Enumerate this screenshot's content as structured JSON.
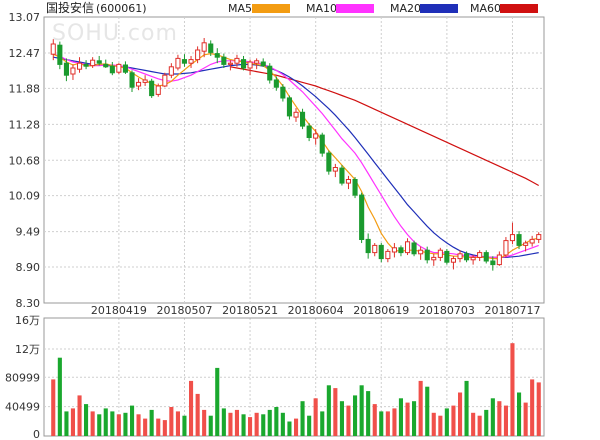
{
  "title": {
    "name": "国投安信",
    "code": "(600061)"
  },
  "watermark": "SOHU.com",
  "legend": [
    {
      "label": "MA5",
      "color": "#f39c12"
    },
    {
      "label": "MA10",
      "color": "#ff33ff"
    },
    {
      "label": "MA20",
      "color": "#1f2fb8"
    },
    {
      "label": "MA60",
      "color": "#d01010"
    }
  ],
  "chart_data": [
    {
      "type": "candlestick",
      "title": "国投安信(600061)",
      "ylim": [
        8.3,
        13.07
      ],
      "y_ticks": [
        "13.07",
        "12.47",
        "11.88",
        "11.28",
        "10.68",
        "10.09",
        "9.49",
        "8.90",
        "8.30"
      ],
      "x_ticks": [
        "20180419",
        "20180507",
        "20180521",
        "20180604",
        "20180619",
        "20180703",
        "20180717"
      ],
      "x_tick_index": [
        10,
        20,
        30,
        40,
        50,
        60,
        70
      ],
      "candles": [
        [
          12.45,
          12.7,
          12.35,
          12.62
        ],
        [
          12.6,
          12.66,
          12.2,
          12.28
        ],
        [
          12.3,
          12.38,
          12.0,
          12.1
        ],
        [
          12.12,
          12.28,
          12.02,
          12.22
        ],
        [
          12.2,
          12.4,
          12.14,
          12.3
        ],
        [
          12.28,
          12.35,
          12.2,
          12.25
        ],
        [
          12.26,
          12.4,
          12.22,
          12.35
        ],
        [
          12.34,
          12.42,
          12.26,
          12.3
        ],
        [
          12.28,
          12.36,
          12.22,
          12.24
        ],
        [
          12.25,
          12.32,
          12.1,
          12.14
        ],
        [
          12.15,
          12.3,
          12.12,
          12.28
        ],
        [
          12.27,
          12.33,
          12.12,
          12.15
        ],
        [
          12.14,
          12.18,
          11.82,
          11.9
        ],
        [
          11.92,
          12.05,
          11.85,
          11.98
        ],
        [
          11.98,
          12.1,
          11.92,
          12.02
        ],
        [
          12.0,
          12.04,
          11.72,
          11.76
        ],
        [
          11.78,
          11.96,
          11.74,
          11.92
        ],
        [
          11.92,
          12.14,
          11.9,
          12.1
        ],
        [
          12.1,
          12.3,
          12.05,
          12.24
        ],
        [
          12.22,
          12.44,
          12.18,
          12.38
        ],
        [
          12.36,
          12.45,
          12.24,
          12.3
        ],
        [
          12.3,
          12.42,
          12.22,
          12.36
        ],
        [
          12.36,
          12.58,
          12.3,
          12.52
        ],
        [
          12.5,
          12.72,
          12.4,
          12.64
        ],
        [
          12.62,
          12.68,
          12.42,
          12.48
        ],
        [
          12.46,
          12.55,
          12.3,
          12.4
        ],
        [
          12.4,
          12.46,
          12.22,
          12.28
        ],
        [
          12.28,
          12.35,
          12.18,
          12.3
        ],
        [
          12.3,
          12.44,
          12.24,
          12.38
        ],
        [
          12.36,
          12.42,
          12.18,
          12.22
        ],
        [
          12.22,
          12.36,
          12.1,
          12.32
        ],
        [
          12.3,
          12.38,
          12.2,
          12.34
        ],
        [
          12.32,
          12.38,
          12.24,
          12.26
        ],
        [
          12.25,
          12.3,
          11.96,
          12.02
        ],
        [
          12.02,
          12.08,
          11.84,
          11.9
        ],
        [
          11.9,
          11.95,
          11.66,
          11.72
        ],
        [
          11.72,
          11.76,
          11.36,
          11.42
        ],
        [
          11.4,
          11.55,
          11.32,
          11.48
        ],
        [
          11.48,
          11.54,
          11.2,
          11.25
        ],
        [
          11.25,
          11.3,
          11.0,
          11.06
        ],
        [
          11.05,
          11.2,
          10.94,
          11.12
        ],
        [
          11.1,
          11.14,
          10.74,
          10.8
        ],
        [
          10.8,
          10.84,
          10.44,
          10.5
        ],
        [
          10.5,
          10.62,
          10.4,
          10.56
        ],
        [
          10.55,
          10.6,
          10.26,
          10.3
        ],
        [
          10.3,
          10.42,
          10.2,
          10.36
        ],
        [
          10.36,
          10.4,
          10.05,
          10.1
        ],
        [
          10.1,
          10.14,
          9.3,
          9.36
        ],
        [
          9.36,
          9.46,
          9.04,
          9.14
        ],
        [
          9.14,
          9.3,
          9.08,
          9.26
        ],
        [
          9.26,
          9.3,
          8.98,
          9.04
        ],
        [
          9.04,
          9.2,
          8.98,
          9.16
        ],
        [
          9.15,
          9.3,
          9.06,
          9.22
        ],
        [
          9.22,
          9.26,
          9.08,
          9.14
        ],
        [
          9.14,
          9.38,
          9.1,
          9.32
        ],
        [
          9.3,
          9.34,
          9.08,
          9.12
        ],
        [
          9.12,
          9.24,
          9.02,
          9.18
        ],
        [
          9.18,
          9.24,
          8.96,
          9.02
        ],
        [
          9.02,
          9.12,
          8.92,
          9.06
        ],
        [
          9.06,
          9.22,
          9.0,
          9.18
        ],
        [
          9.16,
          9.2,
          8.94,
          8.98
        ],
        [
          8.98,
          9.08,
          8.86,
          9.04
        ],
        [
          9.04,
          9.18,
          8.98,
          9.12
        ],
        [
          9.12,
          9.16,
          8.98,
          9.02
        ],
        [
          9.02,
          9.1,
          8.94,
          9.06
        ],
        [
          9.06,
          9.18,
          9.0,
          9.14
        ],
        [
          9.14,
          9.18,
          8.96,
          9.0
        ],
        [
          9.0,
          9.08,
          8.84,
          8.94
        ],
        [
          8.94,
          9.16,
          8.92,
          9.1
        ],
        [
          9.1,
          9.4,
          9.06,
          9.34
        ],
        [
          9.34,
          9.64,
          9.28,
          9.44
        ],
        [
          9.44,
          9.5,
          9.2,
          9.26
        ],
        [
          9.26,
          9.34,
          9.16,
          9.3
        ],
        [
          9.3,
          9.42,
          9.24,
          9.36
        ],
        [
          9.36,
          9.48,
          9.3,
          9.44
        ]
      ],
      "ma5": [
        12.45,
        12.4,
        12.32,
        12.27,
        12.3,
        12.25,
        12.26,
        12.28,
        12.29,
        12.26,
        12.24,
        12.22,
        12.14,
        12.07,
        12.01,
        11.96,
        11.92,
        11.94,
        12.0,
        12.1,
        12.19,
        12.28,
        12.36,
        12.44,
        12.46,
        12.44,
        12.4,
        12.36,
        12.34,
        12.32,
        12.3,
        12.28,
        12.26,
        12.18,
        12.06,
        11.92,
        11.74,
        11.58,
        11.42,
        11.28,
        11.16,
        11.0,
        10.84,
        10.72,
        10.6,
        10.48,
        10.36,
        10.16,
        9.9,
        9.7,
        9.46,
        9.3,
        9.18,
        9.16,
        9.18,
        9.18,
        9.16,
        9.14,
        9.12,
        9.12,
        9.1,
        9.08,
        9.08,
        9.06,
        9.06,
        9.06,
        9.06,
        9.04,
        9.04,
        9.1,
        9.18,
        9.24,
        9.3,
        9.36,
        9.38
      ],
      "ma10": [
        12.45,
        12.42,
        12.36,
        12.32,
        12.3,
        12.28,
        12.26,
        12.26,
        12.27,
        12.27,
        12.26,
        12.24,
        12.2,
        12.16,
        12.12,
        12.08,
        12.04,
        12.01,
        12.0,
        12.02,
        12.06,
        12.1,
        12.16,
        12.22,
        12.28,
        12.32,
        12.34,
        12.34,
        12.34,
        12.34,
        12.32,
        12.31,
        12.28,
        12.24,
        12.18,
        12.11,
        12.02,
        11.92,
        11.82,
        11.7,
        11.58,
        11.46,
        11.32,
        11.18,
        11.04,
        10.92,
        10.8,
        10.64,
        10.46,
        10.28,
        10.1,
        9.92,
        9.74,
        9.58,
        9.44,
        9.32,
        9.24,
        9.18,
        9.14,
        9.14,
        9.13,
        9.12,
        9.1,
        9.09,
        9.08,
        9.07,
        9.07,
        9.06,
        9.06,
        9.07,
        9.1,
        9.14,
        9.18,
        9.22,
        9.26
      ],
      "ma20": [
        12.4,
        12.38,
        12.36,
        12.34,
        12.32,
        12.3,
        12.28,
        12.27,
        12.26,
        12.26,
        12.25,
        12.24,
        12.22,
        12.2,
        12.18,
        12.16,
        12.14,
        12.12,
        12.12,
        12.12,
        12.13,
        12.14,
        12.16,
        12.18,
        12.2,
        12.22,
        12.24,
        12.26,
        12.27,
        12.28,
        12.28,
        12.27,
        12.25,
        12.22,
        12.18,
        12.13,
        12.07,
        12.0,
        11.92,
        11.83,
        11.74,
        11.64,
        11.54,
        11.43,
        11.31,
        11.19,
        11.06,
        10.92,
        10.78,
        10.64,
        10.5,
        10.36,
        10.22,
        10.08,
        9.94,
        9.82,
        9.7,
        9.58,
        9.47,
        9.38,
        9.3,
        9.23,
        9.17,
        9.13,
        9.1,
        9.08,
        9.07,
        9.06,
        9.06,
        9.06,
        9.07,
        9.08,
        9.1,
        9.12,
        9.14
      ],
      "ma60": [
        null,
        null,
        null,
        null,
        null,
        null,
        null,
        null,
        null,
        null,
        null,
        null,
        null,
        null,
        null,
        null,
        null,
        null,
        null,
        null,
        null,
        null,
        null,
        null,
        null,
        null,
        null,
        12.24,
        12.22,
        12.2,
        12.18,
        12.16,
        12.14,
        12.12,
        12.1,
        12.07,
        12.04,
        12.01,
        11.98,
        11.95,
        11.92,
        11.88,
        11.84,
        11.8,
        11.76,
        11.72,
        11.68,
        11.63,
        11.58,
        11.53,
        11.48,
        11.43,
        11.38,
        11.33,
        11.28,
        11.23,
        11.18,
        11.13,
        11.08,
        11.03,
        10.98,
        10.93,
        10.88,
        10.83,
        10.78,
        10.73,
        10.68,
        10.63,
        10.58,
        10.53,
        10.48,
        10.43,
        10.38,
        10.32,
        10.26
      ],
      "volume": {
        "y_ticks": [
          "16万",
          "12万",
          "80999",
          "40499",
          "0"
        ],
        "ylim": [
          0,
          160000
        ],
        "values": [
          78000,
          108000,
          34000,
          38000,
          56000,
          44000,
          34000,
          30000,
          38000,
          34000,
          30000,
          32000,
          42000,
          30000,
          24000,
          36000,
          24000,
          22000,
          40000,
          34000,
          28000,
          76000,
          58000,
          36000,
          28000,
          94000,
          38000,
          32000,
          36000,
          30000,
          26000,
          32000,
          30000,
          36000,
          40000,
          32000,
          20000,
          24000,
          48000,
          28000,
          52000,
          34000,
          70000,
          66000,
          48000,
          42000,
          56000,
          70000,
          62000,
          44000,
          34000,
          34000,
          38000,
          52000,
          46000,
          48000,
          76000,
          68000,
          32000,
          28000,
          38000,
          42000,
          60000,
          76000,
          32000,
          28000,
          36000,
          52000,
          48000,
          42000,
          128000,
          60000,
          46000,
          78000,
          74000
        ]
      }
    }
  ]
}
